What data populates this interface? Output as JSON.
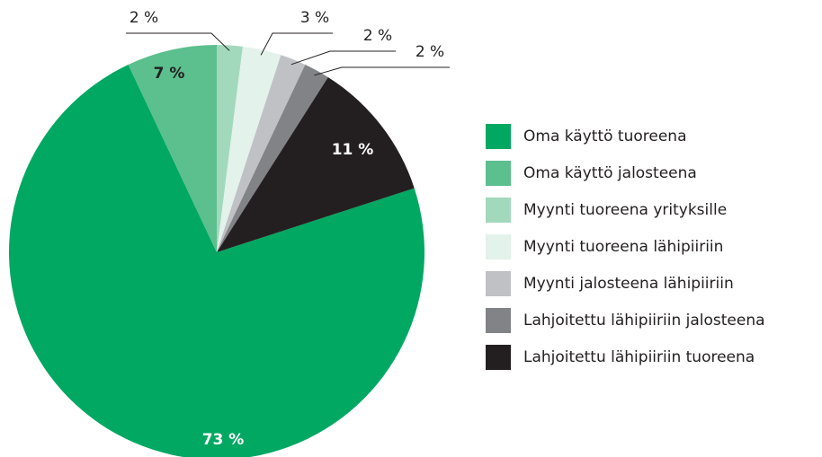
{
  "chart_data": {
    "type": "pie",
    "categories": [
      "Oma käyttö tuoreena",
      "Oma käyttö jalosteena",
      "Myynti tuoreena yrityksille",
      "Myynti tuoreena lähipiiriin",
      "Myynti jalosteena lähipiiriin",
      "Lahjoitettu lähipiiriin jalosteena",
      "Lahjoitettu lähipiiriin tuoreena"
    ],
    "values": [
      73,
      7,
      2,
      3,
      2,
      2,
      11
    ],
    "value_labels": [
      "73 %",
      "7 %",
      "2 %",
      "3 %",
      "2 %",
      "2 %",
      "11 %"
    ],
    "colors": [
      "#00a862",
      "#5bbf8e",
      "#a2d9bd",
      "#e3f2ea",
      "#bfc1c4",
      "#818386",
      "#231f20"
    ],
    "legend": "right"
  }
}
